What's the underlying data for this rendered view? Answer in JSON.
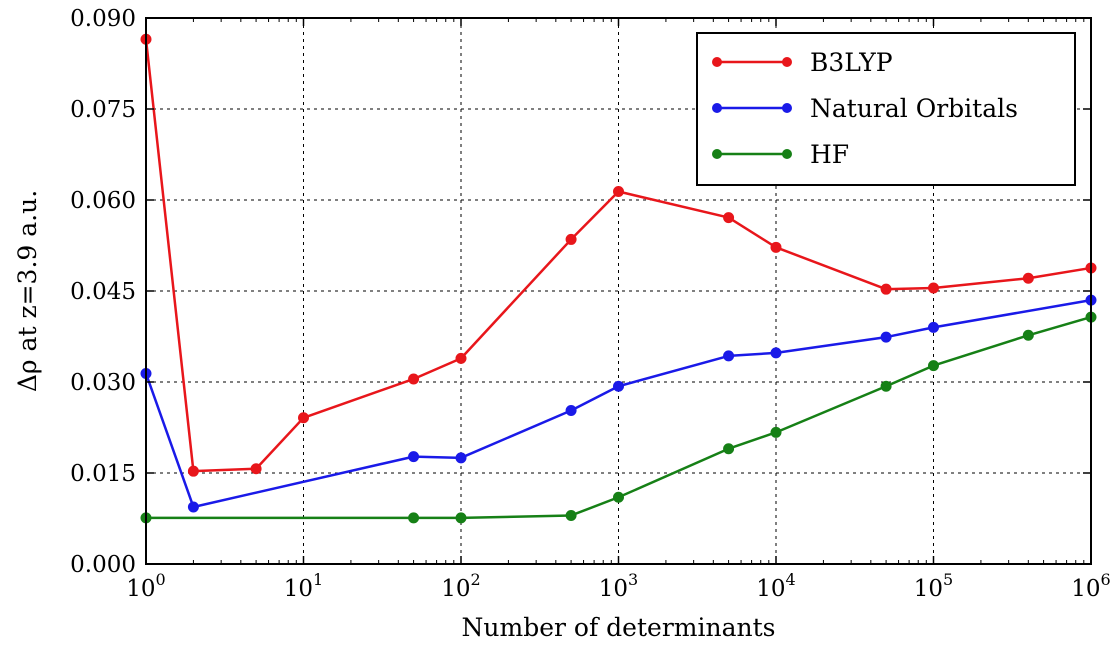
{
  "chart_data": {
    "type": "line",
    "xlabel": "Number of determinants",
    "ylabel": "Δρ at z=3.9 a.u.",
    "xscale": "log",
    "xlim": [
      1,
      1000000
    ],
    "ylim": [
      0,
      0.09
    ],
    "xticks": [
      {
        "value": 1,
        "base": "10",
        "exp": "0"
      },
      {
        "value": 10,
        "base": "10",
        "exp": "1"
      },
      {
        "value": 100,
        "base": "10",
        "exp": "2"
      },
      {
        "value": 1000,
        "base": "10",
        "exp": "3"
      },
      {
        "value": 10000,
        "base": "10",
        "exp": "4"
      },
      {
        "value": 100000,
        "base": "10",
        "exp": "5"
      },
      {
        "value": 1000000,
        "base": "10",
        "exp": "6"
      }
    ],
    "yticks": [
      {
        "value": 0.0,
        "label": "0.000"
      },
      {
        "value": 0.015,
        "label": "0.015"
      },
      {
        "value": 0.03,
        "label": "0.030"
      },
      {
        "value": 0.045,
        "label": "0.045"
      },
      {
        "value": 0.06,
        "label": "0.060"
      },
      {
        "value": 0.075,
        "label": "0.075"
      },
      {
        "value": 0.09,
        "label": "0.090"
      }
    ],
    "grid": true,
    "legend_position": "top-right",
    "series": [
      {
        "name": "B3LYP",
        "color": "#e8161b",
        "x": [
          1,
          2,
          5,
          10,
          50,
          100,
          500,
          1000,
          5000,
          10000,
          50000,
          100000,
          400000,
          1000000
        ],
        "y": [
          0.0865,
          0.0153,
          0.0157,
          0.0241,
          0.0305,
          0.0339,
          0.0535,
          0.0614,
          0.0571,
          0.0522,
          0.0453,
          0.0455,
          0.0471,
          0.0488
        ]
      },
      {
        "name": "Natural Orbitals",
        "color": "#1a1ae8",
        "x": [
          1,
          2,
          50,
          100,
          500,
          1000,
          5000,
          10000,
          50000,
          100000,
          1000000
        ],
        "y": [
          0.0314,
          0.0094,
          0.0177,
          0.0175,
          0.0253,
          0.0293,
          0.0343,
          0.0348,
          0.0374,
          0.039,
          0.0435
        ]
      },
      {
        "name": "HF",
        "color": "#168016",
        "x": [
          1,
          50,
          100,
          500,
          1000,
          5000,
          10000,
          50000,
          100000,
          400000,
          1000000
        ],
        "y": [
          0.0076,
          0.0076,
          0.0076,
          0.008,
          0.011,
          0.019,
          0.0217,
          0.0293,
          0.0327,
          0.0377,
          0.0407
        ]
      }
    ]
  }
}
